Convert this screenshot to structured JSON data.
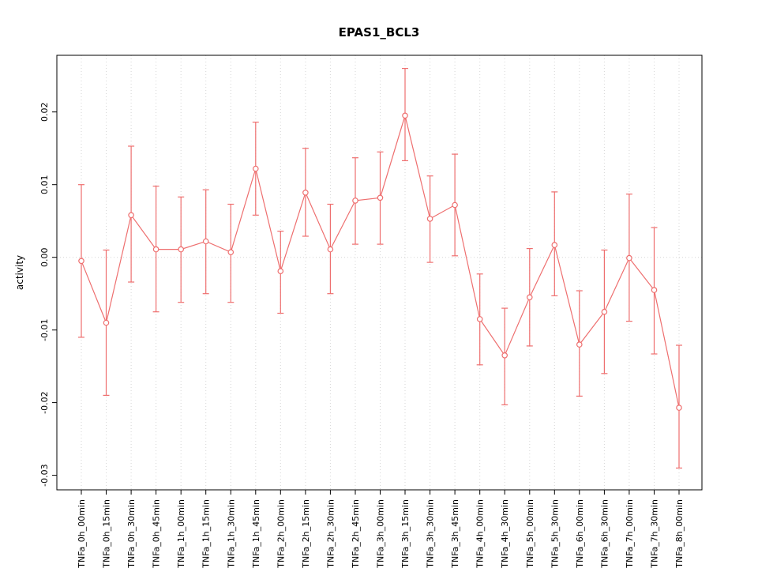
{
  "chart_data": {
    "type": "line",
    "title": "EPAS1_BCL3",
    "xlabel": "",
    "ylabel": "activity",
    "ylim": [
      -0.032,
      0.0278
    ],
    "yticks": [
      -0.03,
      -0.02,
      -0.01,
      0.0,
      0.01,
      0.02
    ],
    "grid": true,
    "legend": "none",
    "color": "#ee6f6f",
    "categories": [
      "TNFa_0h_00min",
      "TNFa_0h_15min",
      "TNFa_0h_30min",
      "TNFa_0h_45min",
      "TNFa_1h_00min",
      "TNFa_1h_15min",
      "TNFa_1h_30min",
      "TNFa_1h_45min",
      "TNFa_2h_00min",
      "TNFa_2h_15min",
      "TNFa_2h_30min",
      "TNFa_2h_45min",
      "TNFa_3h_00min",
      "TNFa_3h_15min",
      "TNFa_3h_30min",
      "TNFa_3h_45min",
      "TNFa_4h_00min",
      "TNFa_4h_30min",
      "TNFa_5h_00min",
      "TNFa_5h_30min",
      "TNFa_6h_00min",
      "TNFa_6h_30min",
      "TNFa_7h_00min",
      "TNFa_7h_30min",
      "TNFa_8h_00min"
    ],
    "values": [
      -0.0005,
      -0.009,
      0.0058,
      0.0011,
      0.0011,
      0.0022,
      0.0007,
      0.0122,
      -0.0019,
      0.0089,
      0.0011,
      0.0078,
      0.0082,
      0.0195,
      0.0053,
      0.0072,
      -0.0085,
      -0.0135,
      -0.0055,
      0.0017,
      -0.012,
      -0.0075,
      -0.0001,
      -0.0045,
      -0.0207
    ],
    "error_upper": [
      0.01,
      0.001,
      0.0153,
      0.0098,
      0.0083,
      0.0093,
      0.0073,
      0.0186,
      0.0036,
      0.015,
      0.0073,
      0.0137,
      0.0145,
      0.026,
      0.0112,
      0.0142,
      -0.0023,
      -0.007,
      0.0012,
      0.009,
      -0.0046,
      0.001,
      0.0087,
      0.0041,
      -0.0121
    ],
    "error_lower": [
      -0.011,
      -0.019,
      -0.0034,
      -0.0075,
      -0.0062,
      -0.005,
      -0.0062,
      0.0058,
      -0.0077,
      0.0029,
      -0.005,
      0.0018,
      0.0018,
      0.0133,
      -0.0007,
      0.0002,
      -0.0148,
      -0.0203,
      -0.0122,
      -0.0053,
      -0.0191,
      -0.016,
      -0.0088,
      -0.0133,
      -0.029
    ]
  }
}
